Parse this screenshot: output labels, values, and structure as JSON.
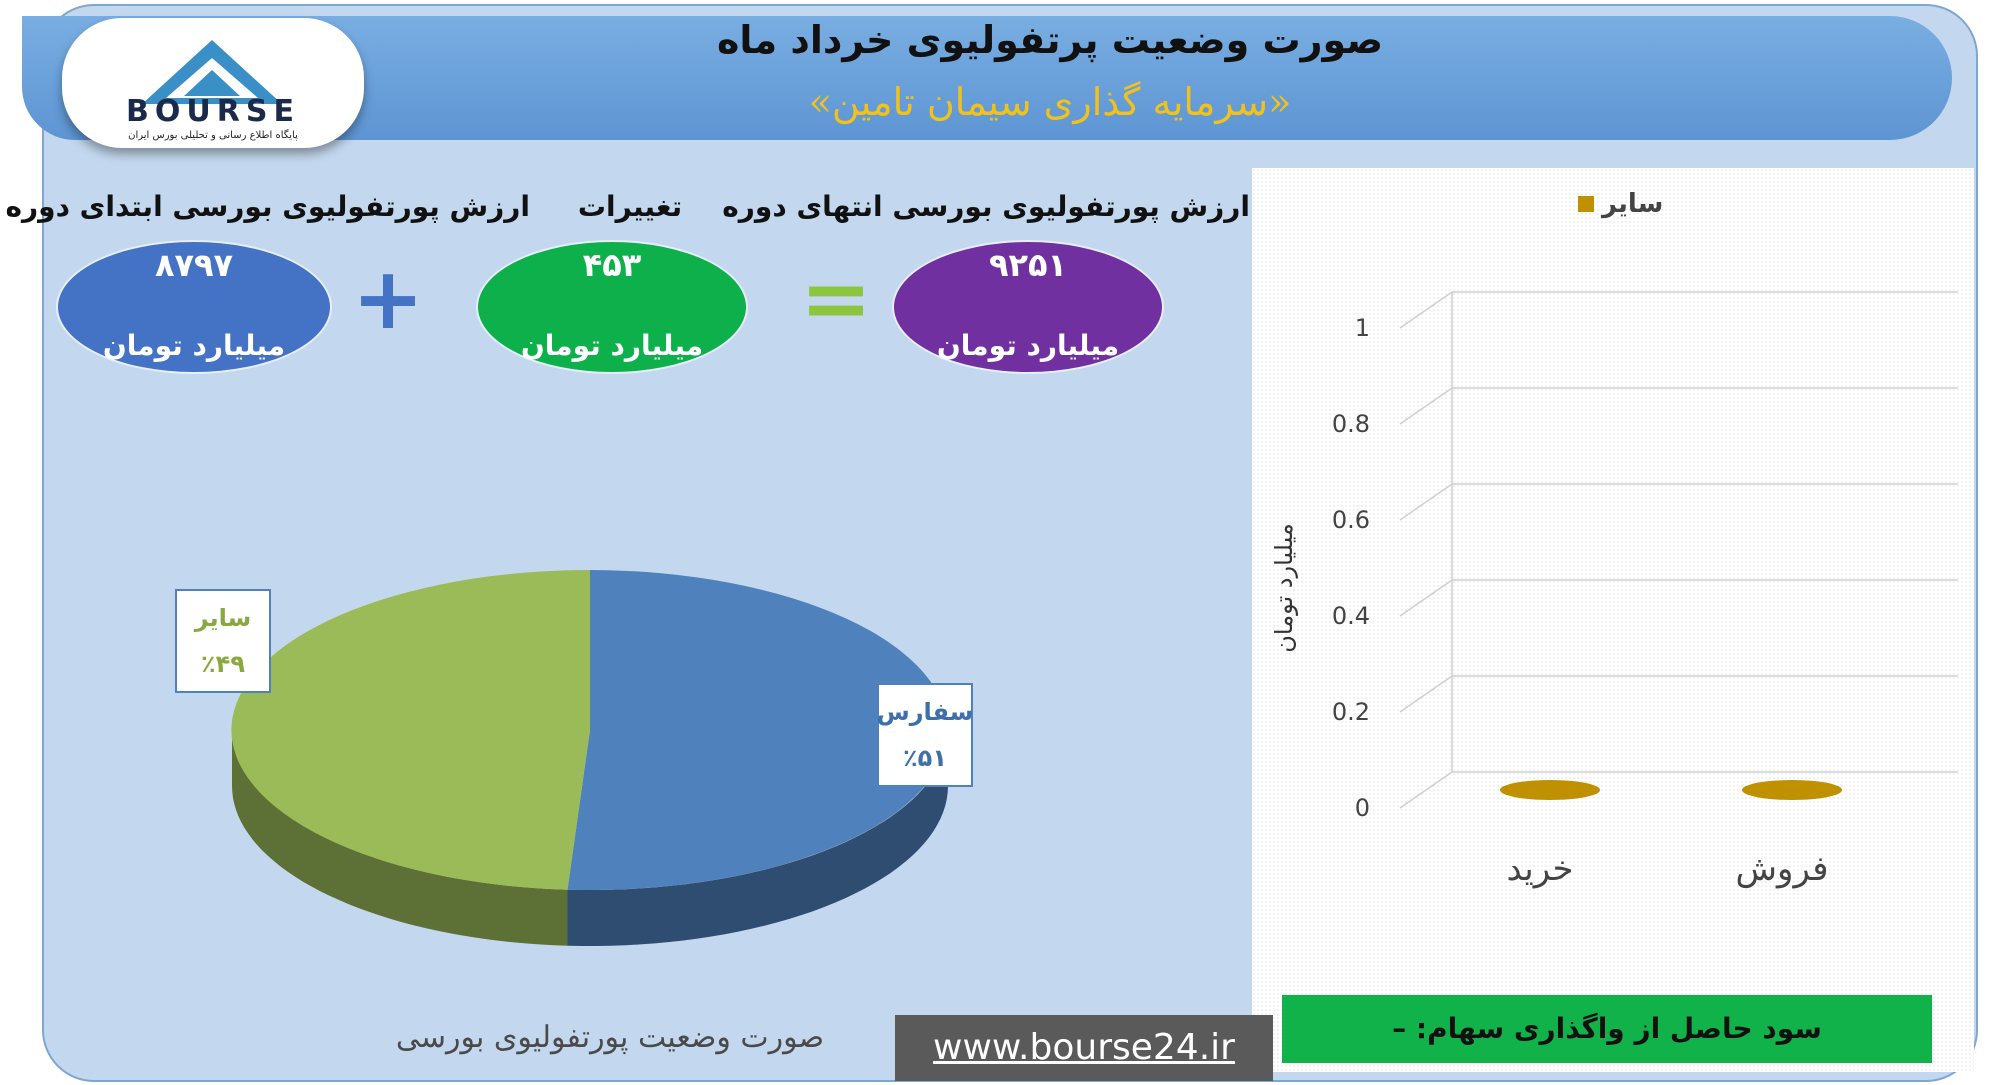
{
  "header": {
    "title": "صورت وضعیت پرتفولیوی خرداد ماه",
    "subtitle": "«سرمایه گذاری سیمان تامین»"
  },
  "logo": {
    "text": "BOURSE",
    "tagline": "پایگاه اطلاع رسانی و تحلیلی بورس ایران"
  },
  "summary": {
    "start": {
      "label": "ارزش پورتفولیوی بورسی ابتدای دوره",
      "value": "۸۷۹۷",
      "unit": "میلیارد تومان"
    },
    "change": {
      "label": "تغییرات",
      "value": "۴۵۳",
      "unit": "میلیارد تومان"
    },
    "end": {
      "label": "ارزش پورتفولیوی بورسی انتهای دوره",
      "value": "۹۲۵۱",
      "unit": "میلیارد تومان"
    },
    "plus": "+",
    "equals": "="
  },
  "colors": {
    "blue": "#4472c4",
    "green": "#0db04b",
    "purple": "#7030a0",
    "pie_blue": "#4f81bd",
    "pie_green": "#9bbb59",
    "bar_gold": "#bf9000"
  },
  "chart_data": [
    {
      "type": "pie",
      "title": "صورت وضعیت پورتفولیوی بورسی",
      "slices": [
        {
          "label": "سفارس",
          "value": 51,
          "display": "٪۵۱"
        },
        {
          "label": "سایر",
          "value": 49,
          "display": "٪۴۹"
        }
      ]
    },
    {
      "type": "bar",
      "categories": [
        "خرید",
        "فروش"
      ],
      "series": [
        {
          "name": "سایر",
          "values": [
            0,
            0
          ]
        }
      ],
      "ylabel": "میلیارد تومان",
      "ylim": [
        0,
        1
      ],
      "yticks": [
        "0",
        "0.2",
        "0.4",
        "0.6",
        "0.8",
        "1"
      ],
      "legend": "top"
    }
  ],
  "footer": {
    "profit": "سود حاصل از واگذاری سهام: –",
    "url": "www.bourse24.ir"
  }
}
